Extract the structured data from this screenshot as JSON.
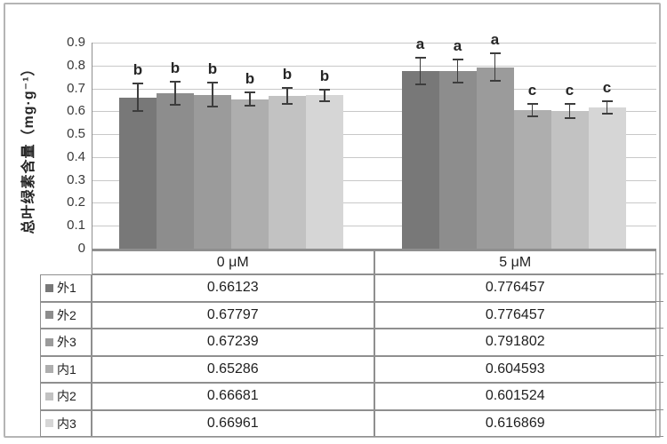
{
  "chart_data": {
    "type": "bar",
    "title": "",
    "ylabel": "总叶绿素含量（mg·g⁻¹）",
    "ylim": [
      0,
      0.9
    ],
    "ytick_step": 0.1,
    "yticks": [
      "0",
      "0.1",
      "0.2",
      "0.3",
      "0.4",
      "0.5",
      "0.6",
      "0.7",
      "0.8",
      "0.9"
    ],
    "grid": true,
    "legend_position": "table-left",
    "categories": [
      "0 μM",
      "5 μM"
    ],
    "series": [
      {
        "name": "外1",
        "color": "#787878",
        "values": [
          0.66123,
          0.776457
        ],
        "errors": [
          0.06,
          0.058
        ],
        "sig_letters": [
          "b",
          "a"
        ]
      },
      {
        "name": "外2",
        "color": "#8d8d8d",
        "values": [
          0.67797,
          0.776457
        ],
        "errors": [
          0.05,
          0.05
        ],
        "sig_letters": [
          "b",
          "a"
        ]
      },
      {
        "name": "外3",
        "color": "#9b9b9b",
        "values": [
          0.67239,
          0.791802
        ],
        "errors": [
          0.052,
          0.06
        ],
        "sig_letters": [
          "b",
          "a"
        ]
      },
      {
        "name": "内1",
        "color": "#aeaeae",
        "values": [
          0.65286,
          0.604593
        ],
        "errors": [
          0.03,
          0.026
        ],
        "sig_letters": [
          "b",
          "c"
        ]
      },
      {
        "name": "内2",
        "color": "#c2c2c2",
        "values": [
          0.66681,
          0.601524
        ],
        "errors": [
          0.035,
          0.032
        ],
        "sig_letters": [
          "b",
          "c"
        ]
      },
      {
        "name": "内3",
        "color": "#d6d6d6",
        "values": [
          0.66961,
          0.616869
        ],
        "errors": [
          0.026,
          0.028
        ],
        "sig_letters": [
          "b",
          "c"
        ]
      }
    ]
  },
  "colors": {
    "background": "#ffffff",
    "gridline": "#c8c8c8",
    "axis_line": "#8f8f8f",
    "table_border": "#8f8f8f",
    "error_bar": "#3d3d3d",
    "text": "#262626",
    "figure_border": "#b5b5b5"
  }
}
